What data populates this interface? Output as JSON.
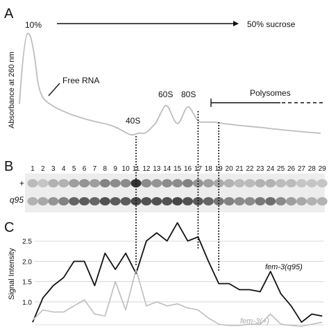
{
  "panel_a": {
    "letter": "A",
    "gradient_start": "10%",
    "gradient_end": "50% sucrose",
    "ylabel": "Absorbance at 260 nm",
    "peaks": {
      "free_rna": "Free RNA",
      "s40": "40S",
      "s60": "60S",
      "s80": "80S",
      "polysomes": "Polysomes"
    },
    "trace_color": "#bdbdbd"
  },
  "panel_b": {
    "letter": "B",
    "lanes": [
      "1",
      "2",
      "3",
      "4",
      "5",
      "6",
      "7",
      "8",
      "9",
      "10",
      "11",
      "12",
      "13",
      "14",
      "15",
      "16",
      "17",
      "18",
      "19",
      "20",
      "21",
      "22",
      "23",
      "24",
      "25",
      "26",
      "27",
      "28",
      "29"
    ],
    "rows": [
      {
        "label": "+",
        "intensity": [
          0.25,
          0.2,
          0.3,
          0.3,
          0.4,
          0.45,
          0.4,
          0.55,
          0.5,
          0.5,
          0.95,
          0.5,
          0.45,
          0.5,
          0.5,
          0.55,
          0.45,
          0.4,
          0.35,
          0.3,
          0.25,
          0.25,
          0.3,
          0.3,
          0.25,
          0.25,
          0.2,
          0.2,
          0.2
        ]
      },
      {
        "label": "q95",
        "intensity": [
          0.3,
          0.35,
          0.45,
          0.55,
          0.7,
          0.75,
          0.7,
          0.8,
          0.75,
          0.75,
          0.85,
          0.8,
          0.8,
          0.8,
          0.85,
          0.8,
          0.75,
          0.7,
          0.6,
          0.55,
          0.5,
          0.5,
          0.6,
          0.65,
          0.5,
          0.4,
          0.35,
          0.3,
          0.3
        ]
      }
    ]
  },
  "panel_c": {
    "letter": "C",
    "ylabel": "Signal Intensity",
    "yticks": [
      "1.0",
      "1.5",
      "2.0",
      "2.5"
    ]
  },
  "chart_data": {
    "type": "line",
    "x": [
      1,
      2,
      3,
      4,
      5,
      6,
      7,
      8,
      9,
      10,
      11,
      12,
      13,
      14,
      15,
      16,
      17,
      18,
      19,
      20,
      21,
      22,
      23,
      24,
      25,
      26,
      27,
      28,
      29
    ],
    "ylabel": "Signal Intensity",
    "ylim": [
      0.4,
      3.0
    ],
    "yticks": [
      1.0,
      1.5,
      2.0,
      2.5
    ],
    "grid": true,
    "series": [
      {
        "name": "fem-3(q95)",
        "color": "#111111",
        "values": [
          0.5,
          1.1,
          1.4,
          1.6,
          2.0,
          2.0,
          1.4,
          2.2,
          1.8,
          2.2,
          1.7,
          2.5,
          2.7,
          2.5,
          2.95,
          2.5,
          2.6,
          2.0,
          1.45,
          1.45,
          1.3,
          1.3,
          1.25,
          1.75,
          1.2,
          0.9,
          0.5,
          0.7,
          0.65
        ]
      },
      {
        "name": "fem-3(+)",
        "color": "#bdbdbd",
        "values": [
          0.55,
          0.8,
          0.75,
          0.75,
          0.9,
          1.05,
          0.7,
          0.65,
          1.5,
          0.8,
          1.8,
          0.9,
          1.0,
          0.9,
          0.95,
          0.85,
          0.8,
          0.6,
          0.45,
          0.42,
          0.42,
          0.45,
          0.45,
          0.7,
          0.45,
          0.42,
          0.4,
          0.45,
          0.5
        ]
      }
    ]
  }
}
